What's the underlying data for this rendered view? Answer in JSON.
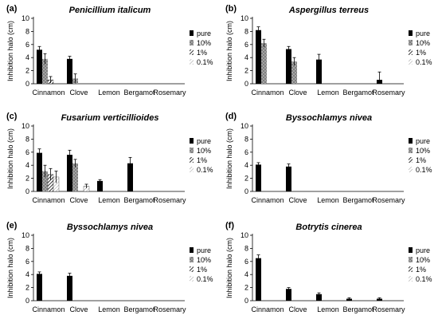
{
  "chart_data": [
    {
      "type": "bar",
      "panel": "(a)",
      "title": "Penicillium italicum",
      "ylabel": "Inhibition halo (cm)",
      "ylim": [
        0,
        10
      ],
      "yticks": [
        0,
        2,
        4,
        6,
        8,
        10
      ],
      "categories": [
        "Cinnamon",
        "Clove",
        "Lemon",
        "Bergamot",
        "Rosemary"
      ],
      "series": [
        {
          "name": "pure",
          "values": [
            5.2,
            3.8,
            0,
            0,
            0
          ],
          "errors": [
            0.5,
            0.4,
            0,
            0,
            0
          ]
        },
        {
          "name": "10%",
          "values": [
            3.8,
            0.8,
            0,
            0,
            0
          ],
          "errors": [
            0.8,
            0.7,
            0,
            0,
            0
          ]
        },
        {
          "name": "1%",
          "values": [
            0.6,
            0,
            0,
            0,
            0
          ],
          "errors": [
            0.5,
            0,
            0,
            0,
            0
          ]
        },
        {
          "name": "0.1%",
          "values": [
            0,
            0,
            0,
            0,
            0
          ],
          "errors": [
            0,
            0,
            0,
            0,
            0
          ]
        }
      ],
      "legend": "right"
    },
    {
      "type": "bar",
      "panel": "(b)",
      "title": "Aspergillus terreus",
      "ylabel": "Inhibition halo (cm)",
      "ylim": [
        0,
        10
      ],
      "yticks": [
        0,
        2,
        4,
        6,
        8,
        10
      ],
      "categories": [
        "Cinnamon",
        "Clove",
        "Lemon",
        "Bergamot",
        "Rosemary"
      ],
      "series": [
        {
          "name": "pure",
          "values": [
            8.2,
            5.3,
            3.7,
            0,
            0.6
          ],
          "errors": [
            0.5,
            0.4,
            0.8,
            0,
            1.2
          ]
        },
        {
          "name": "10%",
          "values": [
            6.2,
            3.4,
            0,
            0,
            0
          ],
          "errors": [
            0.6,
            0.6,
            0,
            0,
            0
          ]
        },
        {
          "name": "1%",
          "values": [
            0,
            0,
            0,
            0,
            0
          ],
          "errors": [
            0,
            0,
            0,
            0,
            0
          ]
        },
        {
          "name": "0.1%",
          "values": [
            0,
            0,
            0,
            0,
            0
          ],
          "errors": [
            0,
            0,
            0,
            0,
            0
          ]
        }
      ],
      "legend": "right"
    },
    {
      "type": "bar",
      "panel": "(c)",
      "title": "Fusarium verticillioides",
      "ylabel": "Inhibition halo (cm)",
      "ylim": [
        0,
        10
      ],
      "yticks": [
        0,
        2,
        4,
        6,
        8,
        10
      ],
      "categories": [
        "Cinnamon",
        "Clove",
        "Lemon",
        "Bergamot",
        "Rosemary"
      ],
      "series": [
        {
          "name": "pure",
          "values": [
            5.9,
            5.6,
            1.6,
            4.3,
            0
          ],
          "errors": [
            0.6,
            0.7,
            0.2,
            0.9,
            0
          ]
        },
        {
          "name": "10%",
          "values": [
            3.1,
            4.3,
            0,
            0,
            0
          ],
          "errors": [
            0.9,
            0.6,
            0,
            0,
            0
          ]
        },
        {
          "name": "1%",
          "values": [
            2.6,
            0,
            0,
            0,
            0
          ],
          "errors": [
            0.9,
            0,
            0,
            0,
            0
          ]
        },
        {
          "name": "0.1%",
          "values": [
            2.2,
            0.8,
            0,
            0,
            0
          ],
          "errors": [
            0.9,
            0.3,
            0,
            0,
            0
          ]
        }
      ],
      "legend": "right"
    },
    {
      "type": "bar",
      "panel": "(d)",
      "title": "Byssochlamys nivea",
      "ylabel": "Inhibition halo (cm)",
      "ylim": [
        0,
        10
      ],
      "yticks": [
        0,
        2,
        4,
        6,
        8,
        10
      ],
      "categories": [
        "Cinnamon",
        "Clove",
        "Lemon",
        "Bergamot",
        "Rosemary"
      ],
      "series": [
        {
          "name": "pure",
          "values": [
            4.1,
            3.8,
            0,
            0,
            0
          ],
          "errors": [
            0.3,
            0.4,
            0,
            0,
            0
          ]
        },
        {
          "name": "10%",
          "values": [
            0,
            0,
            0,
            0,
            0
          ],
          "errors": [
            0,
            0,
            0,
            0,
            0
          ]
        },
        {
          "name": "1%",
          "values": [
            0,
            0,
            0,
            0,
            0
          ],
          "errors": [
            0,
            0,
            0,
            0,
            0
          ]
        },
        {
          "name": "0.1%",
          "values": [
            0,
            0,
            0,
            0,
            0
          ],
          "errors": [
            0,
            0,
            0,
            0,
            0
          ]
        }
      ],
      "legend": "right"
    },
    {
      "type": "bar",
      "panel": "(e)",
      "title": "Byssochlamys nivea",
      "ylabel": "Inhibition halo (cm)",
      "ylim": [
        0,
        10
      ],
      "yticks": [
        0,
        2,
        4,
        6,
        8,
        10
      ],
      "categories": [
        "Cinnamon",
        "Clove",
        "Lemon",
        "Bergamot",
        "Rosemary"
      ],
      "series": [
        {
          "name": "pure",
          "values": [
            4.1,
            3.8,
            0,
            0,
            0
          ],
          "errors": [
            0.3,
            0.4,
            0,
            0,
            0
          ]
        },
        {
          "name": "10%",
          "values": [
            0,
            0,
            0,
            0,
            0
          ],
          "errors": [
            0,
            0,
            0,
            0,
            0
          ]
        },
        {
          "name": "1%",
          "values": [
            0,
            0,
            0,
            0,
            0
          ],
          "errors": [
            0,
            0,
            0,
            0,
            0
          ]
        },
        {
          "name": "0.1%",
          "values": [
            0,
            0,
            0,
            0,
            0
          ],
          "errors": [
            0,
            0,
            0,
            0,
            0
          ]
        }
      ],
      "legend": "right"
    },
    {
      "type": "bar",
      "panel": "(f)",
      "title": "Botrytis cinerea",
      "ylabel": "Inhibition halo (cm)",
      "ylim": [
        0,
        10
      ],
      "yticks": [
        0,
        2,
        4,
        6,
        8,
        10
      ],
      "categories": [
        "Cinnamon",
        "Clove",
        "Lemon",
        "Bergamot",
        "Rosemary"
      ],
      "series": [
        {
          "name": "pure",
          "values": [
            6.5,
            1.8,
            1.0,
            0.3,
            0.3
          ],
          "errors": [
            0.5,
            0.2,
            0.2,
            0.15,
            0.15
          ]
        },
        {
          "name": "10%",
          "values": [
            0,
            0,
            0,
            0,
            0
          ],
          "errors": [
            0,
            0,
            0,
            0,
            0
          ]
        },
        {
          "name": "1%",
          "values": [
            0,
            0,
            0,
            0,
            0
          ],
          "errors": [
            0,
            0,
            0,
            0,
            0
          ]
        },
        {
          "name": "0.1%",
          "values": [
            0,
            0,
            0,
            0,
            0
          ],
          "errors": [
            0,
            0,
            0,
            0,
            0
          ]
        }
      ],
      "legend": "right"
    }
  ],
  "colors": {
    "pure": "#000000",
    "10%": "#808080",
    "1%": "hatch-black",
    "0.1%": "hatch-gray"
  }
}
